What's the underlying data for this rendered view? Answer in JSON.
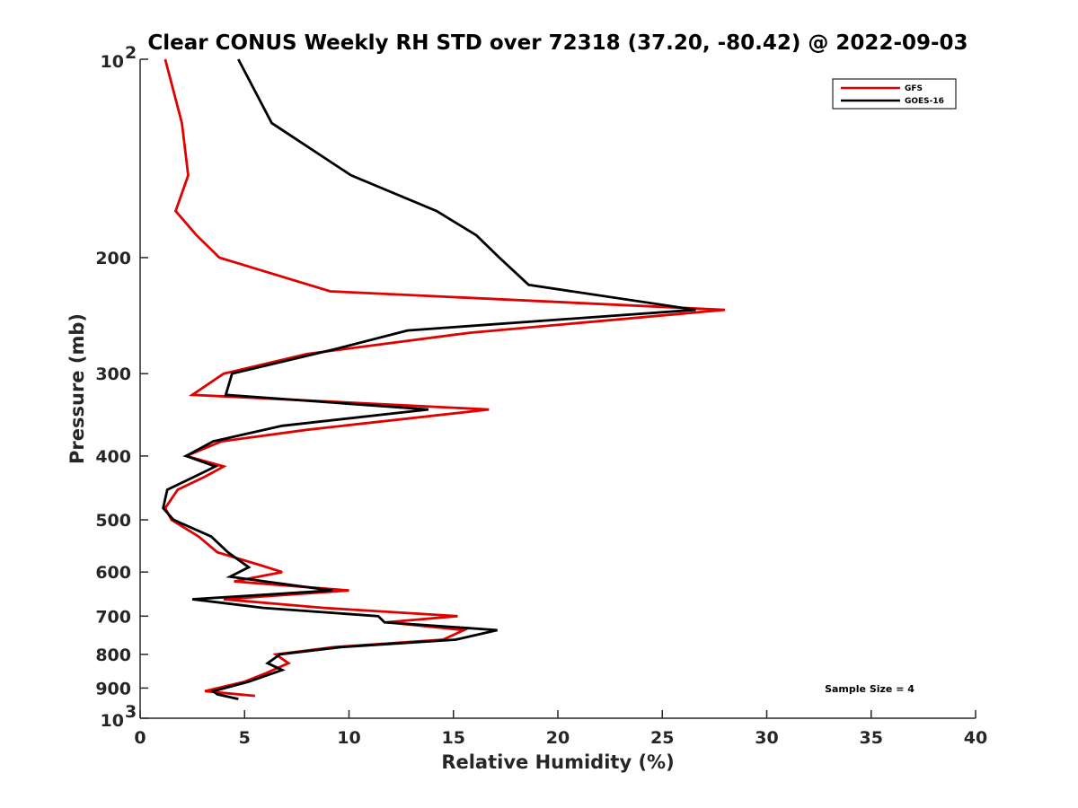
{
  "chart_data": {
    "type": "line",
    "title": "Clear CONUS Weekly RH STD over 72318 (37.20, -80.42) @ 2022-09-03",
    "xlabel": "Relative Humidity (%)",
    "ylabel": "Pressure (mb)",
    "xlim": [
      0,
      40
    ],
    "ylim": [
      100,
      1000
    ],
    "yscale": "log",
    "y_reversed": true,
    "xticks": [
      "0",
      "5",
      "10",
      "15",
      "20",
      "25",
      "30",
      "35",
      "40"
    ],
    "yticks": [
      {
        "value": 100,
        "base": "10",
        "exp": "2"
      },
      {
        "value": 200,
        "label": "200"
      },
      {
        "value": 300,
        "label": "300"
      },
      {
        "value": 400,
        "label": "400"
      },
      {
        "value": 500,
        "label": "500"
      },
      {
        "value": 600,
        "label": "600"
      },
      {
        "value": 700,
        "label": "700"
      },
      {
        "value": 800,
        "label": "800"
      },
      {
        "value": 900,
        "label": "900"
      },
      {
        "value": 1000,
        "base": "10",
        "exp": "3"
      }
    ],
    "grid": false,
    "legend_position": "top-right",
    "annotation": "Sample Size = 4",
    "series": [
      {
        "name": "GFS",
        "color": "#e00000",
        "points": [
          [
            1.2,
            100
          ],
          [
            2.0,
            125
          ],
          [
            2.3,
            150
          ],
          [
            1.7,
            170
          ],
          [
            2.7,
            185
          ],
          [
            3.8,
            200
          ],
          [
            9.1,
            225
          ],
          [
            28.0,
            240
          ],
          [
            15.8,
            260
          ],
          [
            8.0,
            280
          ],
          [
            4.0,
            300
          ],
          [
            2.5,
            323
          ],
          [
            16.7,
            340
          ],
          [
            8.0,
            365
          ],
          [
            3.9,
            380
          ],
          [
            2.2,
            400
          ],
          [
            4.0,
            415
          ],
          [
            3.1,
            430
          ],
          [
            1.8,
            450
          ],
          [
            1.2,
            480
          ],
          [
            1.5,
            500
          ],
          [
            2.8,
            530
          ],
          [
            3.7,
            560
          ],
          [
            5.7,
            585
          ],
          [
            6.8,
            600
          ],
          [
            4.5,
            620
          ],
          [
            10.0,
            640
          ],
          [
            4.0,
            660
          ],
          [
            8.8,
            680
          ],
          [
            15.2,
            700
          ],
          [
            11.8,
            715
          ],
          [
            15.5,
            735
          ],
          [
            14.5,
            760
          ],
          [
            9.3,
            780
          ],
          [
            6.5,
            800
          ],
          [
            7.1,
            825
          ],
          [
            6.0,
            855
          ],
          [
            5.0,
            880
          ],
          [
            3.1,
            910
          ],
          [
            5.5,
            925
          ]
        ]
      },
      {
        "name": "GOES-16",
        "color": "#000000",
        "points": [
          [
            4.7,
            100
          ],
          [
            6.3,
            125
          ],
          [
            10.1,
            150
          ],
          [
            14.2,
            170
          ],
          [
            16.1,
            185
          ],
          [
            17.2,
            200
          ],
          [
            18.6,
            220
          ],
          [
            26.6,
            240
          ],
          [
            12.8,
            258
          ],
          [
            9.4,
            275
          ],
          [
            4.4,
            300
          ],
          [
            4.1,
            323
          ],
          [
            13.8,
            340
          ],
          [
            6.8,
            360
          ],
          [
            3.5,
            380
          ],
          [
            2.2,
            400
          ],
          [
            3.6,
            415
          ],
          [
            2.6,
            430
          ],
          [
            1.3,
            450
          ],
          [
            1.1,
            480
          ],
          [
            1.6,
            500
          ],
          [
            3.4,
            530
          ],
          [
            4.2,
            560
          ],
          [
            5.2,
            590
          ],
          [
            4.3,
            610
          ],
          [
            9.2,
            640
          ],
          [
            2.5,
            660
          ],
          [
            5.9,
            680
          ],
          [
            11.4,
            700
          ],
          [
            11.7,
            715
          ],
          [
            17.1,
            735
          ],
          [
            15.1,
            760
          ],
          [
            9.6,
            780
          ],
          [
            6.7,
            800
          ],
          [
            6.1,
            825
          ],
          [
            6.8,
            845
          ],
          [
            5.2,
            880
          ],
          [
            3.5,
            910
          ],
          [
            3.7,
            920
          ],
          [
            4.7,
            935
          ]
        ]
      }
    ]
  }
}
